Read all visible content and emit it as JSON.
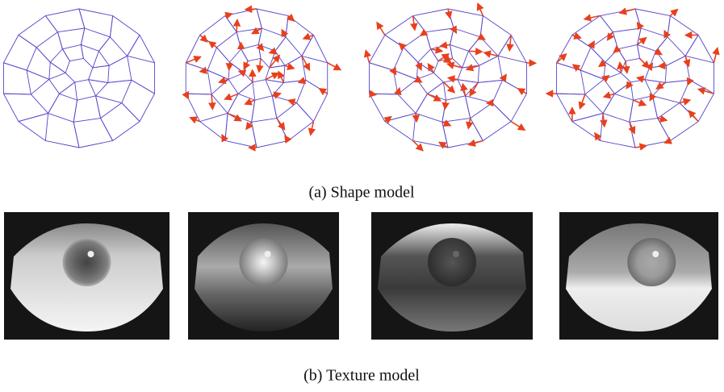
{
  "figure": {
    "captions": {
      "shape": "(a) Shape model",
      "texture": "(b) Texture model"
    }
  }
}
